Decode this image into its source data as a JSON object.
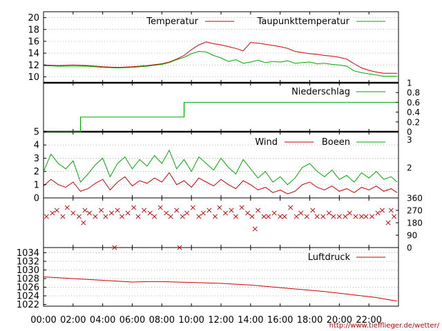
{
  "chart_data": [
    {
      "type": "line",
      "panel": "temperature",
      "ylim": [
        9,
        21
      ],
      "y_ticks": [
        "10",
        "12",
        "14",
        "16",
        "18",
        "20"
      ],
      "legend_placement": "top-right",
      "grid": true,
      "series": [
        {
          "name": "Temperatur",
          "color": "#cc0000",
          "x_hours": [
            0,
            1,
            2,
            3,
            4,
            5,
            6,
            7,
            8,
            8.5,
            9,
            9.5,
            10,
            10.5,
            11,
            11.5,
            12,
            12.5,
            13,
            13.5,
            14,
            14.5,
            15,
            15.5,
            16,
            16.5,
            17,
            17.5,
            18,
            18.5,
            19,
            19.5,
            20,
            20.5,
            21,
            21.5,
            22,
            22.5,
            23,
            23.9
          ],
          "values": [
            12.0,
            11.9,
            12.0,
            11.9,
            11.7,
            11.6,
            11.7,
            11.9,
            12.2,
            12.5,
            13.0,
            13.6,
            14.6,
            15.4,
            15.9,
            15.6,
            15.4,
            15.1,
            14.8,
            14.4,
            15.8,
            15.7,
            15.5,
            15.3,
            15.1,
            14.8,
            14.3,
            14.1,
            13.9,
            13.8,
            13.6,
            13.5,
            13.3,
            13.0,
            12.2,
            11.5,
            11.1,
            10.8,
            10.6,
            10.6
          ]
        },
        {
          "name": "Taupunkttemperatur",
          "color": "#00aa00",
          "x_hours": [
            0,
            1,
            2,
            3,
            4,
            5,
            6,
            7,
            8,
            8.5,
            9,
            9.5,
            10,
            10.5,
            11,
            11.5,
            12,
            12.5,
            13,
            13.5,
            14,
            14.5,
            15,
            15.5,
            16,
            16.5,
            17,
            17.5,
            18,
            18.5,
            19,
            19.5,
            20,
            20.5,
            21,
            21.5,
            22,
            22.5,
            23,
            23.9
          ],
          "values": [
            11.9,
            11.8,
            11.8,
            11.8,
            11.6,
            11.5,
            11.6,
            11.8,
            12.1,
            12.4,
            12.9,
            13.3,
            13.9,
            14.3,
            14.2,
            13.6,
            13.2,
            12.6,
            12.9,
            12.3,
            12.5,
            12.8,
            12.4,
            12.6,
            12.5,
            12.7,
            12.3,
            12.4,
            12.5,
            12.2,
            12.3,
            12.1,
            12.0,
            11.8,
            11.0,
            10.7,
            10.5,
            10.3,
            10.1,
            10.1
          ]
        }
      ]
    },
    {
      "type": "line",
      "panel": "precipitation",
      "ylim": [
        0,
        1
      ],
      "y_ticks": [
        "0",
        "0.2",
        "0.4",
        "0.6",
        "0.8",
        "1"
      ],
      "series": [
        {
          "name": "Niederschlag",
          "color": "#00aa00",
          "step": true,
          "x_hours": [
            0,
            2.5,
            2.5,
            9.5,
            9.5,
            23.9
          ],
          "values": [
            0,
            0,
            0.3,
            0.3,
            0.6,
            0.6
          ]
        }
      ]
    },
    {
      "type": "line",
      "panel": "wind",
      "ylim": [
        0,
        5
      ],
      "y_ticks_left": [
        "0",
        "1",
        "2",
        "3",
        "4",
        "5"
      ],
      "y_ticks_right": [
        "2",
        "3"
      ],
      "series": [
        {
          "name": "Wind",
          "color": "#cc0000",
          "x_hours": [
            0,
            0.5,
            1,
            1.5,
            2,
            2.5,
            3,
            3.5,
            4,
            4.5,
            5,
            5.5,
            6,
            6.5,
            7,
            7.5,
            8,
            8.5,
            9,
            9.5,
            10,
            10.5,
            11,
            11.5,
            12,
            12.5,
            13,
            13.5,
            14,
            14.5,
            15,
            15.5,
            16,
            16.5,
            17,
            17.5,
            18,
            18.5,
            19,
            19.5,
            20,
            20.5,
            21,
            21.5,
            22,
            22.5,
            23,
            23.5,
            23.9
          ],
          "values": [
            0.9,
            1.4,
            1.0,
            0.8,
            1.2,
            0.5,
            0.7,
            1.1,
            1.4,
            0.6,
            1.2,
            1.6,
            0.9,
            1.3,
            1.1,
            1.5,
            1.2,
            1.9,
            1.0,
            1.3,
            0.8,
            1.5,
            1.2,
            0.9,
            1.4,
            1.0,
            0.7,
            1.3,
            1.0,
            0.6,
            0.8,
            0.4,
            0.6,
            0.3,
            0.5,
            1.0,
            1.2,
            0.8,
            0.6,
            0.9,
            0.5,
            0.7,
            0.4,
            0.8,
            0.6,
            0.9,
            0.5,
            0.7,
            0.4
          ]
        },
        {
          "name": "Boeen",
          "color": "#00aa00",
          "x_hours": [
            0,
            0.5,
            1,
            1.5,
            2,
            2.5,
            3,
            3.5,
            4,
            4.5,
            5,
            5.5,
            6,
            6.5,
            7,
            7.5,
            8,
            8.5,
            9,
            9.5,
            10,
            10.5,
            11,
            11.5,
            12,
            12.5,
            13,
            13.5,
            14,
            14.5,
            15,
            15.5,
            16,
            16.5,
            17,
            17.5,
            18,
            18.5,
            19,
            19.5,
            20,
            20.5,
            21,
            21.5,
            22,
            22.5,
            23,
            23.5,
            23.9
          ],
          "values": [
            2.0,
            3.3,
            2.6,
            2.2,
            2.8,
            1.2,
            1.8,
            2.5,
            3.0,
            1.6,
            2.6,
            3.1,
            2.2,
            2.9,
            2.4,
            3.2,
            2.6,
            3.6,
            2.2,
            2.9,
            2.0,
            3.1,
            2.6,
            2.1,
            3.0,
            2.3,
            1.8,
            2.9,
            2.2,
            1.5,
            2.0,
            1.2,
            1.6,
            1.0,
            1.5,
            2.3,
            2.6,
            2.0,
            1.6,
            2.1,
            1.4,
            1.7,
            1.2,
            1.9,
            1.5,
            2.0,
            1.4,
            1.6,
            1.2
          ]
        }
      ]
    },
    {
      "type": "scatter",
      "panel": "wind_direction",
      "ylim": [
        0,
        360
      ],
      "y_ticks_right": [
        "0",
        "90",
        "180",
        "270",
        "360"
      ],
      "color": "#cc0000",
      "marker": "x",
      "x_hours": [
        0.2,
        0.6,
        0.9,
        1.3,
        1.6,
        2.0,
        2.4,
        2.8,
        3.1,
        3.5,
        3.9,
        4.2,
        4.6,
        5.0,
        5.3,
        5.7,
        6.1,
        6.4,
        6.8,
        7.2,
        7.5,
        7.9,
        8.3,
        8.6,
        9.0,
        9.4,
        9.7,
        10.1,
        10.5,
        10.8,
        11.2,
        11.6,
        11.9,
        12.3,
        12.7,
        13.0,
        13.4,
        13.8,
        14.1,
        14.5,
        14.9,
        15.2,
        15.6,
        16.0,
        16.3,
        16.7,
        17.1,
        17.4,
        17.8,
        18.2,
        18.5,
        18.9,
        19.3,
        19.6,
        20.0,
        20.4,
        20.7,
        21.1,
        21.5,
        21.8,
        22.2,
        22.6,
        22.9,
        23.3,
        23.7,
        4.8,
        9.2,
        14.3,
        2.7,
        23.5
      ],
      "values": [
        225,
        250,
        270,
        225,
        290,
        250,
        225,
        270,
        250,
        225,
        270,
        225,
        250,
        270,
        225,
        250,
        290,
        225,
        270,
        250,
        225,
        290,
        250,
        225,
        270,
        225,
        250,
        290,
        225,
        250,
        270,
        225,
        290,
        250,
        270,
        225,
        290,
        250,
        225,
        270,
        225,
        225,
        250,
        225,
        225,
        290,
        225,
        250,
        225,
        270,
        225,
        225,
        250,
        225,
        225,
        225,
        250,
        225,
        225,
        225,
        225,
        250,
        270,
        180,
        225,
        0,
        0,
        135,
        180,
        270
      ]
    },
    {
      "type": "line",
      "panel": "pressure",
      "ylim": [
        1021.6,
        1035.2
      ],
      "y_ticks": [
        "1022",
        "1024",
        "1026",
        "1028",
        "1030",
        "1032",
        "1034"
      ],
      "series": [
        {
          "name": "Luftdruck",
          "color": "#cc0000",
          "x_hours": [
            0,
            1,
            2,
            3,
            4,
            5,
            6,
            7,
            8,
            9,
            10,
            11,
            12,
            13,
            14,
            15,
            16,
            17,
            18,
            19,
            20,
            21,
            22,
            22.5,
            23,
            23.5,
            23.9
          ],
          "values": [
            1028.4,
            1028.2,
            1028.0,
            1027.8,
            1027.6,
            1027.4,
            1027.2,
            1027.3,
            1027.3,
            1027.2,
            1027.1,
            1027.0,
            1026.9,
            1026.7,
            1026.5,
            1026.2,
            1025.9,
            1025.6,
            1025.3,
            1025.0,
            1024.6,
            1024.2,
            1023.8,
            1023.6,
            1023.3,
            1023.0,
            1022.8
          ]
        }
      ]
    }
  ],
  "x_axis": {
    "ticks": [
      "00:00",
      "02:00",
      "04:00",
      "06:00",
      "08:00",
      "10:00",
      "12:00",
      "14:00",
      "16:00",
      "18:00",
      "20:00",
      "22:00"
    ]
  },
  "footer": {
    "url": "http://www.tiefflieger.de/wetter/"
  }
}
